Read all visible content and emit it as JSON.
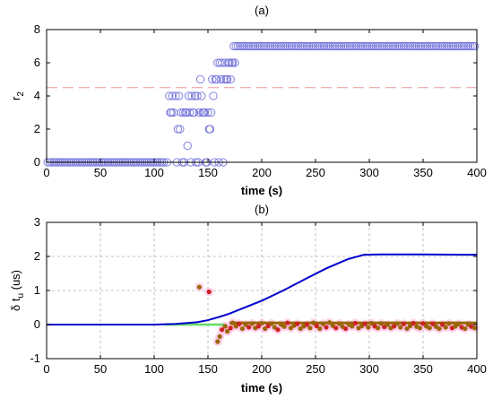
{
  "chart_data": [
    {
      "type": "scatter",
      "title": "(a)",
      "xlabel": "time (s)",
      "ylabel_main": "r",
      "ylabel_sub": "2",
      "xlim": [
        0,
        400
      ],
      "ylim": [
        0,
        8
      ],
      "xticks": [
        0,
        50,
        100,
        150,
        200,
        250,
        300,
        350,
        400
      ],
      "yticks": [
        0,
        2,
        4,
        6,
        8
      ],
      "grid": false,
      "colors": {
        "markers": "#7777dd",
        "threshold": "#ee9999"
      },
      "threshold_y": 4.5,
      "series": [
        {
          "segments": [
            {
              "x_start": 1,
              "x_end": 110,
              "step": 2,
              "y": 0
            },
            {
              "x_start": 176,
              "x_end": 399,
              "step": 2,
              "y": 7
            }
          ],
          "points": [
            [
              112,
              0
            ],
            [
              114,
              4
            ],
            [
              115,
              3
            ],
            [
              116,
              3
            ],
            [
              117,
              4
            ],
            [
              118,
              3
            ],
            [
              120,
              4
            ],
            [
              121,
              0
            ],
            [
              122,
              2
            ],
            [
              123,
              4
            ],
            [
              124,
              2
            ],
            [
              125,
              3
            ],
            [
              126,
              0
            ],
            [
              127,
              3
            ],
            [
              128,
              0
            ],
            [
              129,
              3
            ],
            [
              130,
              3
            ],
            [
              131,
              1
            ],
            [
              132,
              4
            ],
            [
              133,
              3
            ],
            [
              134,
              0
            ],
            [
              135,
              4
            ],
            [
              136,
              3
            ],
            [
              137,
              3
            ],
            [
              138,
              4
            ],
            [
              139,
              0
            ],
            [
              140,
              4
            ],
            [
              141,
              0
            ],
            [
              142,
              3
            ],
            [
              143,
              5
            ],
            [
              144,
              4
            ],
            [
              145,
              3
            ],
            [
              146,
              3
            ],
            [
              147,
              3
            ],
            [
              148,
              0
            ],
            [
              149,
              0
            ],
            [
              150,
              3
            ],
            [
              151,
              2
            ],
            [
              152,
              2
            ],
            [
              153,
              3
            ],
            [
              154,
              5
            ],
            [
              155,
              4
            ],
            [
              156,
              0
            ],
            [
              157,
              5
            ],
            [
              158,
              5
            ],
            [
              159,
              6
            ],
            [
              160,
              0
            ],
            [
              161,
              6
            ],
            [
              162,
              5
            ],
            [
              163,
              6
            ],
            [
              164,
              0
            ],
            [
              165,
              5
            ],
            [
              166,
              6
            ],
            [
              167,
              5
            ],
            [
              168,
              5
            ],
            [
              169,
              6
            ],
            [
              170,
              6
            ],
            [
              171,
              5
            ],
            [
              172,
              6
            ],
            [
              173,
              6
            ],
            [
              174,
              7
            ],
            [
              175,
              6
            ]
          ]
        }
      ]
    },
    {
      "type": "line",
      "title": "(b)",
      "xlabel": "time (s)",
      "ylabel_main": "δ t",
      "ylabel_sub": "u",
      "ylabel_unit": " (us)",
      "xlim": [
        0,
        400
      ],
      "ylim": [
        -1,
        3
      ],
      "xticks": [
        0,
        50,
        100,
        150,
        200,
        250,
        300,
        350,
        400
      ],
      "yticks": [
        -1,
        0,
        1,
        2,
        3
      ],
      "grid": true,
      "colors": {
        "line": "#0000cc",
        "green": "#66dd66",
        "markers": "#996600",
        "red": "#cc2222",
        "pink": "#ffb0e0"
      },
      "series": [
        {
          "style": "line",
          "x": [
            0,
            100,
            120,
            140,
            150,
            160,
            170,
            180,
            200,
            220,
            240,
            260,
            280,
            295,
            310,
            350,
            400
          ],
          "y": [
            0,
            0,
            0.02,
            0.07,
            0.13,
            0.22,
            0.32,
            0.45,
            0.7,
            1.0,
            1.33,
            1.65,
            1.92,
            2.05,
            2.06,
            2.06,
            2.05
          ]
        },
        {
          "style": "line-green",
          "x": [
            110,
            165
          ],
          "y": [
            0,
            0
          ]
        },
        {
          "style": "points",
          "points": [
            [
              142,
              1.1
            ],
            [
              151,
              0.96
            ],
            [
              159,
              -0.5
            ],
            [
              161,
              -0.35
            ],
            [
              163,
              -0.15
            ],
            [
              166,
              -0.05
            ],
            [
              168,
              -0.2
            ],
            [
              171,
              -0.1
            ],
            [
              173,
              0.05
            ],
            [
              176,
              -0.05
            ],
            [
              179,
              0.02
            ],
            [
              182,
              -0.12
            ],
            [
              185,
              0.0
            ],
            [
              188,
              -0.08
            ],
            [
              191,
              0.03
            ],
            [
              194,
              -0.1
            ],
            [
              197,
              -0.05
            ],
            [
              200,
              0.04
            ],
            [
              203,
              -0.12
            ],
            [
              206,
              -0.04
            ],
            [
              209,
              0.03
            ],
            [
              212,
              -0.08
            ],
            [
              215,
              -0.15
            ],
            [
              218,
              0.0
            ],
            [
              221,
              -0.06
            ],
            [
              224,
              0.05
            ],
            [
              227,
              -0.1
            ],
            [
              230,
              -0.03
            ],
            [
              233,
              0.02
            ],
            [
              236,
              -0.12
            ],
            [
              239,
              -0.05
            ],
            [
              242,
              0.0
            ],
            [
              245,
              -0.1
            ],
            [
              248,
              0.05
            ],
            [
              251,
              -0.04
            ],
            [
              254,
              -0.12
            ],
            [
              257,
              0.02
            ],
            [
              260,
              -0.08
            ],
            [
              263,
              0.06
            ],
            [
              266,
              -0.03
            ],
            [
              269,
              -0.1
            ],
            [
              272,
              0.03
            ],
            [
              275,
              -0.06
            ],
            [
              278,
              -0.12
            ],
            [
              281,
              0.0
            ],
            [
              284,
              -0.05
            ],
            [
              287,
              0.04
            ],
            [
              290,
              -0.1
            ],
            [
              293,
              -0.04
            ],
            [
              296,
              0.02
            ],
            [
              299,
              -0.08
            ],
            [
              302,
              0.04
            ],
            [
              305,
              -0.05
            ],
            [
              308,
              -0.1
            ],
            [
              311,
              0.03
            ],
            [
              314,
              -0.07
            ],
            [
              317,
              0.0
            ],
            [
              320,
              -0.1
            ],
            [
              323,
              -0.05
            ],
            [
              326,
              0.03
            ],
            [
              329,
              -0.08
            ],
            [
              332,
              0.02
            ],
            [
              335,
              -0.12
            ],
            [
              338,
              -0.04
            ],
            [
              341,
              0.04
            ],
            [
              344,
              -0.06
            ],
            [
              347,
              -0.1
            ],
            [
              350,
              0.03
            ],
            [
              353,
              -0.05
            ],
            [
              356,
              -0.1
            ],
            [
              359,
              0.02
            ],
            [
              362,
              -0.06
            ],
            [
              365,
              -0.12
            ],
            [
              368,
              0.0
            ],
            [
              371,
              -0.08
            ],
            [
              374,
              0.03
            ],
            [
              377,
              -0.1
            ],
            [
              380,
              -0.05
            ],
            [
              383,
              0.02
            ],
            [
              386,
              -0.08
            ],
            [
              389,
              -0.12
            ],
            [
              392,
              0.0
            ],
            [
              395,
              -0.06
            ],
            [
              398,
              -0.1
            ]
          ]
        },
        {
          "style": "flat-band",
          "x": [
            170,
            400
          ],
          "y": 0.05
        }
      ]
    }
  ]
}
